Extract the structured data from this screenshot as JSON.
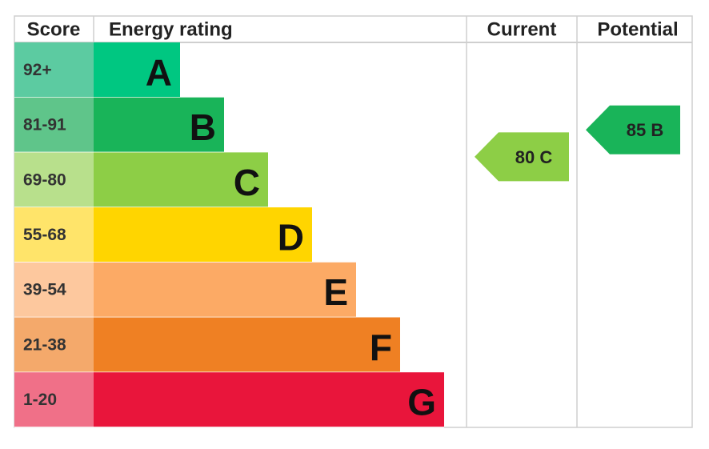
{
  "headers": {
    "score": "Score",
    "rating": "Energy rating",
    "current": "Current",
    "potential": "Potential"
  },
  "bands": [
    {
      "score": "92+",
      "letter": "A",
      "color": "#00c781",
      "score_color": "#5ccba1"
    },
    {
      "score": "81-91",
      "letter": "B",
      "color": "#19b459",
      "score_color": "#5fc58a"
    },
    {
      "score": "69-80",
      "letter": "C",
      "color": "#8dce46",
      "score_color": "#b8e08c"
    },
    {
      "score": "55-68",
      "letter": "D",
      "color": "#ffd500",
      "score_color": "#ffe46a"
    },
    {
      "score": "39-54",
      "letter": "E",
      "color": "#fcaa65",
      "score_color": "#fdc89e"
    },
    {
      "score": "21-38",
      "letter": "F",
      "color": "#ef8023",
      "score_color": "#f4a96b"
    },
    {
      "score": "1-20",
      "letter": "G",
      "color": "#e9153b",
      "score_color": "#f07088"
    }
  ],
  "current": {
    "value": 80,
    "letter": "C"
  },
  "potential": {
    "value": 85,
    "letter": "B"
  }
}
